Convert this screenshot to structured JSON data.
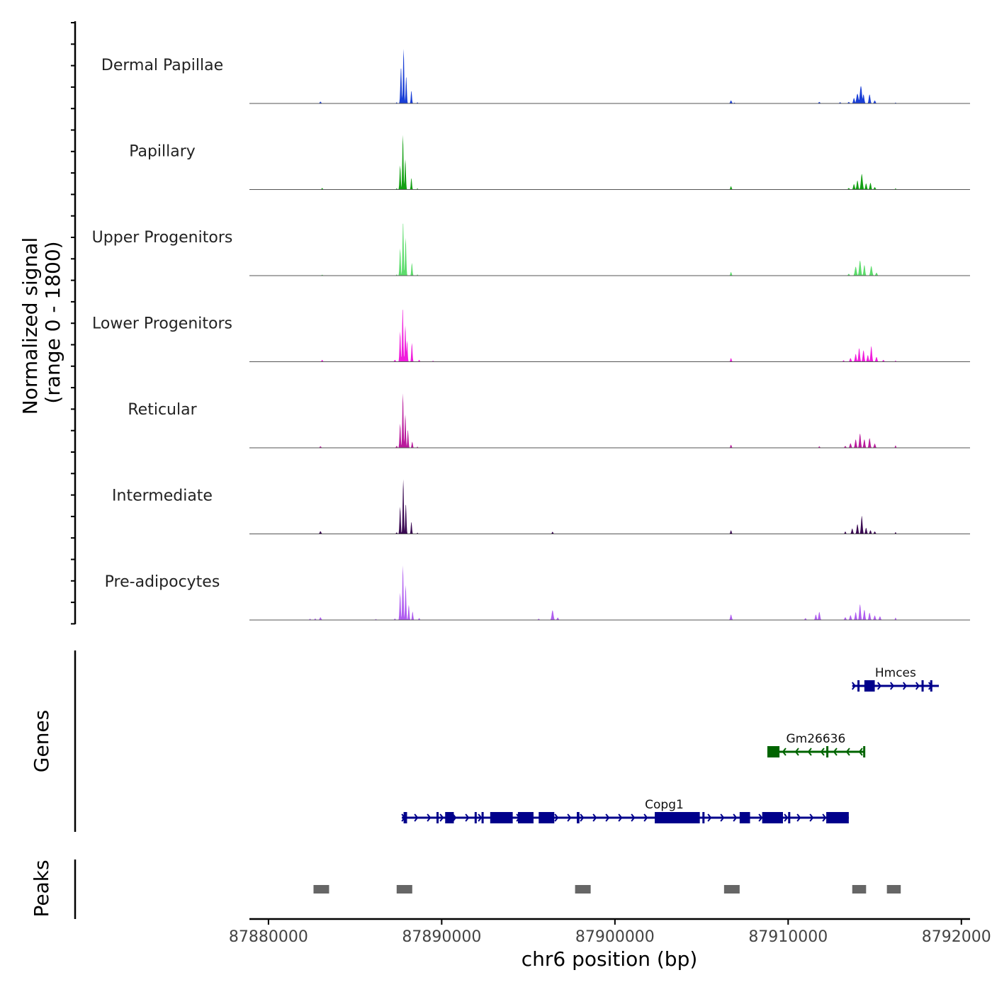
{
  "chart_data": {
    "type": "area",
    "title": "",
    "xlabel": "chr6 position (bp)",
    "ylabel": [
      "Normalized signal",
      "(range 0 - 1800)"
    ],
    "xlim": [
      87878900,
      87920500
    ],
    "ylim": [
      0,
      1800
    ],
    "x_ticks": [
      87880000,
      87890000,
      87900000,
      87910000,
      87920000
    ],
    "x_tick_labels": [
      "87880000",
      "87890000",
      "87900000",
      "87910000",
      "87920000"
    ],
    "series": [
      {
        "name": "Dermal Papillae",
        "color": "#1a3fd6",
        "peaks": [
          [
            87883000,
            60,
            60
          ],
          [
            87887400,
            40,
            40
          ],
          [
            87887650,
            1200,
            50
          ],
          [
            87887800,
            1800,
            45
          ],
          [
            87887950,
            900,
            45
          ],
          [
            87888250,
            420,
            45
          ],
          [
            87888600,
            40,
            40
          ],
          [
            87906700,
            100,
            60
          ],
          [
            87906900,
            30,
            40
          ],
          [
            87911800,
            50,
            60
          ],
          [
            87913000,
            40,
            60
          ],
          [
            87913500,
            50,
            60
          ],
          [
            87913800,
            180,
            60
          ],
          [
            87914000,
            320,
            80
          ],
          [
            87914200,
            580,
            80
          ],
          [
            87914350,
            300,
            60
          ],
          [
            87914700,
            300,
            60
          ],
          [
            87915000,
            100,
            60
          ],
          [
            87916200,
            30,
            40
          ]
        ]
      },
      {
        "name": "Papillary",
        "color": "#14a014",
        "peaks": [
          [
            87883100,
            50,
            50
          ],
          [
            87887400,
            40,
            40
          ],
          [
            87887600,
            800,
            45
          ],
          [
            87887760,
            1800,
            45
          ],
          [
            87887900,
            1000,
            45
          ],
          [
            87888250,
            380,
            45
          ],
          [
            87888600,
            40,
            40
          ],
          [
            87906700,
            110,
            50
          ],
          [
            87913500,
            50,
            60
          ],
          [
            87913800,
            180,
            60
          ],
          [
            87914000,
            300,
            60
          ],
          [
            87914250,
            520,
            70
          ],
          [
            87914500,
            200,
            60
          ],
          [
            87914750,
            220,
            60
          ],
          [
            87915000,
            80,
            60
          ],
          [
            87916200,
            40,
            40
          ]
        ]
      },
      {
        "name": "Upper Progenitors",
        "color": "#5ddc6c",
        "peaks": [
          [
            87883100,
            30,
            50
          ],
          [
            87887400,
            40,
            40
          ],
          [
            87887600,
            900,
            45
          ],
          [
            87887770,
            1800,
            45
          ],
          [
            87887920,
            1250,
            45
          ],
          [
            87888280,
            420,
            45
          ],
          [
            87888600,
            40,
            40
          ],
          [
            87906700,
            120,
            50
          ],
          [
            87913500,
            60,
            60
          ],
          [
            87913900,
            300,
            70
          ],
          [
            87914150,
            500,
            70
          ],
          [
            87914400,
            350,
            60
          ],
          [
            87914800,
            320,
            70
          ],
          [
            87915100,
            100,
            60
          ]
        ]
      },
      {
        "name": "Lower Progenitors",
        "color": "#f01ddc",
        "peaks": [
          [
            87883100,
            60,
            50
          ],
          [
            87887300,
            60,
            60
          ],
          [
            87887600,
            1000,
            45
          ],
          [
            87887750,
            1800,
            45
          ],
          [
            87887900,
            1200,
            45
          ],
          [
            87888000,
            700,
            45
          ],
          [
            87888280,
            620,
            45
          ],
          [
            87888700,
            60,
            50
          ],
          [
            87889500,
            30,
            50
          ],
          [
            87906700,
            120,
            50
          ],
          [
            87913200,
            50,
            50
          ],
          [
            87913600,
            120,
            60
          ],
          [
            87913900,
            260,
            60
          ],
          [
            87914100,
            450,
            60
          ],
          [
            87914350,
            380,
            60
          ],
          [
            87914600,
            220,
            60
          ],
          [
            87914800,
            520,
            60
          ],
          [
            87915100,
            160,
            60
          ],
          [
            87915500,
            60,
            60
          ],
          [
            87916200,
            40,
            40
          ]
        ]
      },
      {
        "name": "Reticular",
        "color": "#b91a9c",
        "peaks": [
          [
            87883000,
            50,
            60
          ],
          [
            87887400,
            60,
            50
          ],
          [
            87887600,
            800,
            45
          ],
          [
            87887760,
            1800,
            45
          ],
          [
            87887900,
            1100,
            45
          ],
          [
            87888050,
            600,
            45
          ],
          [
            87888300,
            200,
            45
          ],
          [
            87888600,
            40,
            40
          ],
          [
            87906700,
            100,
            50
          ],
          [
            87911800,
            50,
            50
          ],
          [
            87913300,
            60,
            60
          ],
          [
            87913600,
            150,
            60
          ],
          [
            87913900,
            280,
            60
          ],
          [
            87914150,
            470,
            60
          ],
          [
            87914400,
            280,
            60
          ],
          [
            87914700,
            320,
            60
          ],
          [
            87915000,
            140,
            60
          ],
          [
            87916200,
            80,
            40
          ]
        ]
      },
      {
        "name": "Intermediate",
        "color": "#3a0a52",
        "peaks": [
          [
            87883000,
            90,
            60
          ],
          [
            87887400,
            50,
            50
          ],
          [
            87887600,
            900,
            45
          ],
          [
            87887780,
            1800,
            45
          ],
          [
            87887930,
            1000,
            45
          ],
          [
            87888250,
            400,
            45
          ],
          [
            87888600,
            40,
            40
          ],
          [
            87896400,
            70,
            50
          ],
          [
            87906700,
            120,
            50
          ],
          [
            87913300,
            80,
            50
          ],
          [
            87913700,
            180,
            60
          ],
          [
            87914000,
            320,
            60
          ],
          [
            87914250,
            600,
            60
          ],
          [
            87914500,
            200,
            60
          ],
          [
            87914750,
            120,
            60
          ],
          [
            87915000,
            80,
            60
          ],
          [
            87916200,
            60,
            40
          ]
        ]
      },
      {
        "name": "Pre-adipocytes",
        "color": "#b05ef0",
        "peaks": [
          [
            87882400,
            40,
            50
          ],
          [
            87882700,
            50,
            50
          ],
          [
            87883000,
            90,
            60
          ],
          [
            87886200,
            30,
            50
          ],
          [
            87887300,
            50,
            50
          ],
          [
            87887600,
            900,
            45
          ],
          [
            87887760,
            1800,
            45
          ],
          [
            87887920,
            1150,
            45
          ],
          [
            87888100,
            500,
            45
          ],
          [
            87888320,
            280,
            45
          ],
          [
            87888700,
            60,
            50
          ],
          [
            87895600,
            40,
            60
          ],
          [
            87896400,
            320,
            70
          ],
          [
            87896700,
            80,
            60
          ],
          [
            87906700,
            180,
            60
          ],
          [
            87911000,
            60,
            60
          ],
          [
            87911600,
            180,
            60
          ],
          [
            87911800,
            270,
            60
          ],
          [
            87913300,
            90,
            60
          ],
          [
            87913600,
            160,
            60
          ],
          [
            87913900,
            260,
            60
          ],
          [
            87914150,
            520,
            60
          ],
          [
            87914400,
            340,
            60
          ],
          [
            87914700,
            240,
            60
          ],
          [
            87915000,
            150,
            60
          ],
          [
            87915300,
            120,
            60
          ],
          [
            87916200,
            80,
            40
          ]
        ]
      }
    ],
    "genes": [
      {
        "name": "Hmces",
        "color": "#00008b",
        "strand": "+",
        "start": 87913700,
        "end": 87918700,
        "exons": [
          [
            87914000,
            87914070
          ],
          [
            87914400,
            87915000
          ],
          [
            87917700,
            87917770
          ],
          [
            87918200,
            87918270
          ]
        ]
      },
      {
        "name": "Gm26636",
        "color": "#006400",
        "strand": "-",
        "start": 87908800,
        "end": 87914400,
        "exons": [
          [
            87908800,
            87909500
          ],
          [
            87912200,
            87912280
          ],
          [
            87914330,
            87914400
          ]
        ]
      },
      {
        "name": "Copg1",
        "color": "#00008b",
        "strand": "+",
        "start": 87887700,
        "end": 87913500,
        "exons": [
          [
            87887800,
            87888000
          ],
          [
            87889700,
            87889780
          ],
          [
            87890200,
            87890700
          ],
          [
            87891900,
            87891970
          ],
          [
            87892300,
            87892370
          ],
          [
            87892800,
            87894100
          ],
          [
            87894400,
            87895300
          ],
          [
            87895600,
            87896500
          ],
          [
            87897800,
            87897950
          ],
          [
            87902300,
            87904900
          ],
          [
            87905050,
            87905120
          ],
          [
            87907200,
            87907800
          ],
          [
            87908500,
            87909700
          ],
          [
            87910000,
            87910070
          ],
          [
            87912200,
            87913500
          ]
        ]
      }
    ],
    "peaks": [
      [
        87882600,
        87883500
      ],
      [
        87887400,
        87888300
      ],
      [
        87897700,
        87898600
      ],
      [
        87906300,
        87907200
      ],
      [
        87913700,
        87914500
      ],
      [
        87915700,
        87916500
      ]
    ],
    "panel_labels": {
      "genes": "Genes",
      "peaks": "Peaks"
    }
  }
}
